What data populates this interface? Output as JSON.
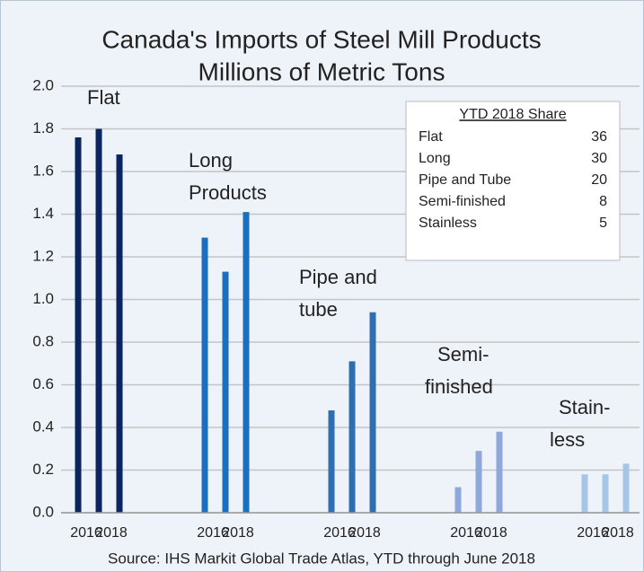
{
  "chart_data": {
    "type": "grouped_bar",
    "title": "Canada's Imports of Steel Mill Products",
    "subtitle": "Millions of Metric Tons",
    "categories": [
      "2016",
      null,
      "2018"
    ],
    "groups": [
      {
        "name": [
          "Flat"
        ],
        "color": "#0b2560",
        "values": [
          1.76,
          1.8,
          1.68
        ]
      },
      {
        "name": [
          "Long",
          "Products"
        ],
        "color": "#1a6fc0",
        "values": [
          1.29,
          1.13,
          1.41
        ]
      },
      {
        "name": [
          "Pipe and",
          "tube"
        ],
        "color": "#2f6eb0",
        "values": [
          0.48,
          0.71,
          0.94
        ]
      },
      {
        "name": [
          "Semi-",
          "finished"
        ],
        "color": "#8ea8dc",
        "values": [
          0.12,
          0.29,
          0.38
        ]
      },
      {
        "name": [
          "Stain-",
          "less"
        ],
        "color": "#a6c6e8",
        "values": [
          0.18,
          0.18,
          0.23
        ]
      }
    ],
    "ylim": [
      0,
      2
    ],
    "yticks": [
      {
        "value": 0,
        "label": "0.0"
      },
      0.2,
      0.4,
      0.6,
      0.8,
      {
        "value": 1,
        "label": "1.0"
      },
      1.2,
      1.4,
      1.6,
      1.8,
      {
        "value": 2,
        "label": "2.0"
      }
    ],
    "grid": true,
    "inset": {
      "title": "YTD 2018 Share",
      "rows": [
        [
          "Flat",
          36
        ],
        [
          "Long",
          30
        ],
        [
          "Pipe and Tube",
          20
        ],
        [
          "Semi-finished",
          8
        ],
        [
          "Stainless",
          5
        ]
      ]
    },
    "source": "Source: IHS Markit Global Trade Atlas, YTD through June 2018"
  }
}
